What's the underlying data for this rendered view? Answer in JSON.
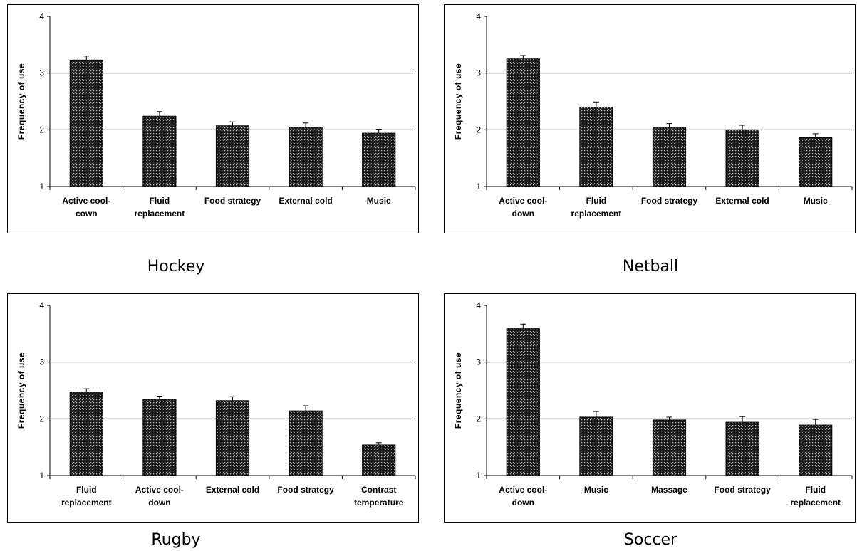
{
  "chart_data": [
    {
      "type": "bar",
      "caption": "Hockey",
      "ylabel": "Frequency of use",
      "ylim": [
        1,
        4
      ],
      "yticks": [
        "1",
        "2",
        "3",
        "4"
      ],
      "categories": [
        [
          "Active cool-",
          "cown"
        ],
        [
          "Fluid",
          "replacement"
        ],
        [
          "Food strategy"
        ],
        [
          "External cold"
        ],
        [
          "Music"
        ]
      ],
      "values": [
        3.23,
        2.24,
        2.07,
        2.04,
        1.94
      ],
      "errors": [
        0.07,
        0.08,
        0.07,
        0.08,
        0.07
      ],
      "grid": true,
      "bar_pattern": "dotted-dark"
    },
    {
      "type": "bar",
      "caption": "Netball",
      "ylabel": "Frequency of use",
      "ylim": [
        1,
        4
      ],
      "yticks": [
        "1",
        "2",
        "3",
        "4"
      ],
      "categories": [
        [
          "Active cool-",
          "down"
        ],
        [
          "Fluid",
          "replacement"
        ],
        [
          "Food strategy"
        ],
        [
          "External cold"
        ],
        [
          "Music"
        ]
      ],
      "values": [
        3.25,
        2.4,
        2.04,
        2.0,
        1.86
      ],
      "errors": [
        0.06,
        0.09,
        0.07,
        0.08,
        0.07
      ],
      "grid": true,
      "bar_pattern": "dotted-dark"
    },
    {
      "type": "bar",
      "caption": "Rugby",
      "ylabel": "Frequency of use",
      "ylim": [
        1,
        4
      ],
      "yticks": [
        "1",
        "2",
        "3",
        "4"
      ],
      "categories": [
        [
          "Fluid",
          "replacement"
        ],
        [
          "Active cool-",
          "down"
        ],
        [
          "External cold"
        ],
        [
          "Food strategy"
        ],
        [
          "Contrast",
          "temperature"
        ]
      ],
      "values": [
        2.47,
        2.34,
        2.32,
        2.14,
        1.54
      ],
      "errors": [
        0.06,
        0.06,
        0.07,
        0.09,
        0.04
      ],
      "grid": true,
      "bar_pattern": "dotted-dark"
    },
    {
      "type": "bar",
      "caption": "Soccer",
      "ylabel": "Frequency of use",
      "ylim": [
        1,
        4
      ],
      "yticks": [
        "1",
        "2",
        "3",
        "4"
      ],
      "categories": [
        [
          "Active cool-",
          "down"
        ],
        [
          "Music"
        ],
        [
          "Massage"
        ],
        [
          "Food strategy"
        ],
        [
          "Fluid",
          "replacement"
        ]
      ],
      "values": [
        3.59,
        2.03,
        1.98,
        1.94,
        1.89
      ],
      "errors": [
        0.08,
        0.1,
        0.05,
        0.1,
        0.1
      ],
      "grid": true,
      "bar_pattern": "dotted-dark"
    }
  ]
}
